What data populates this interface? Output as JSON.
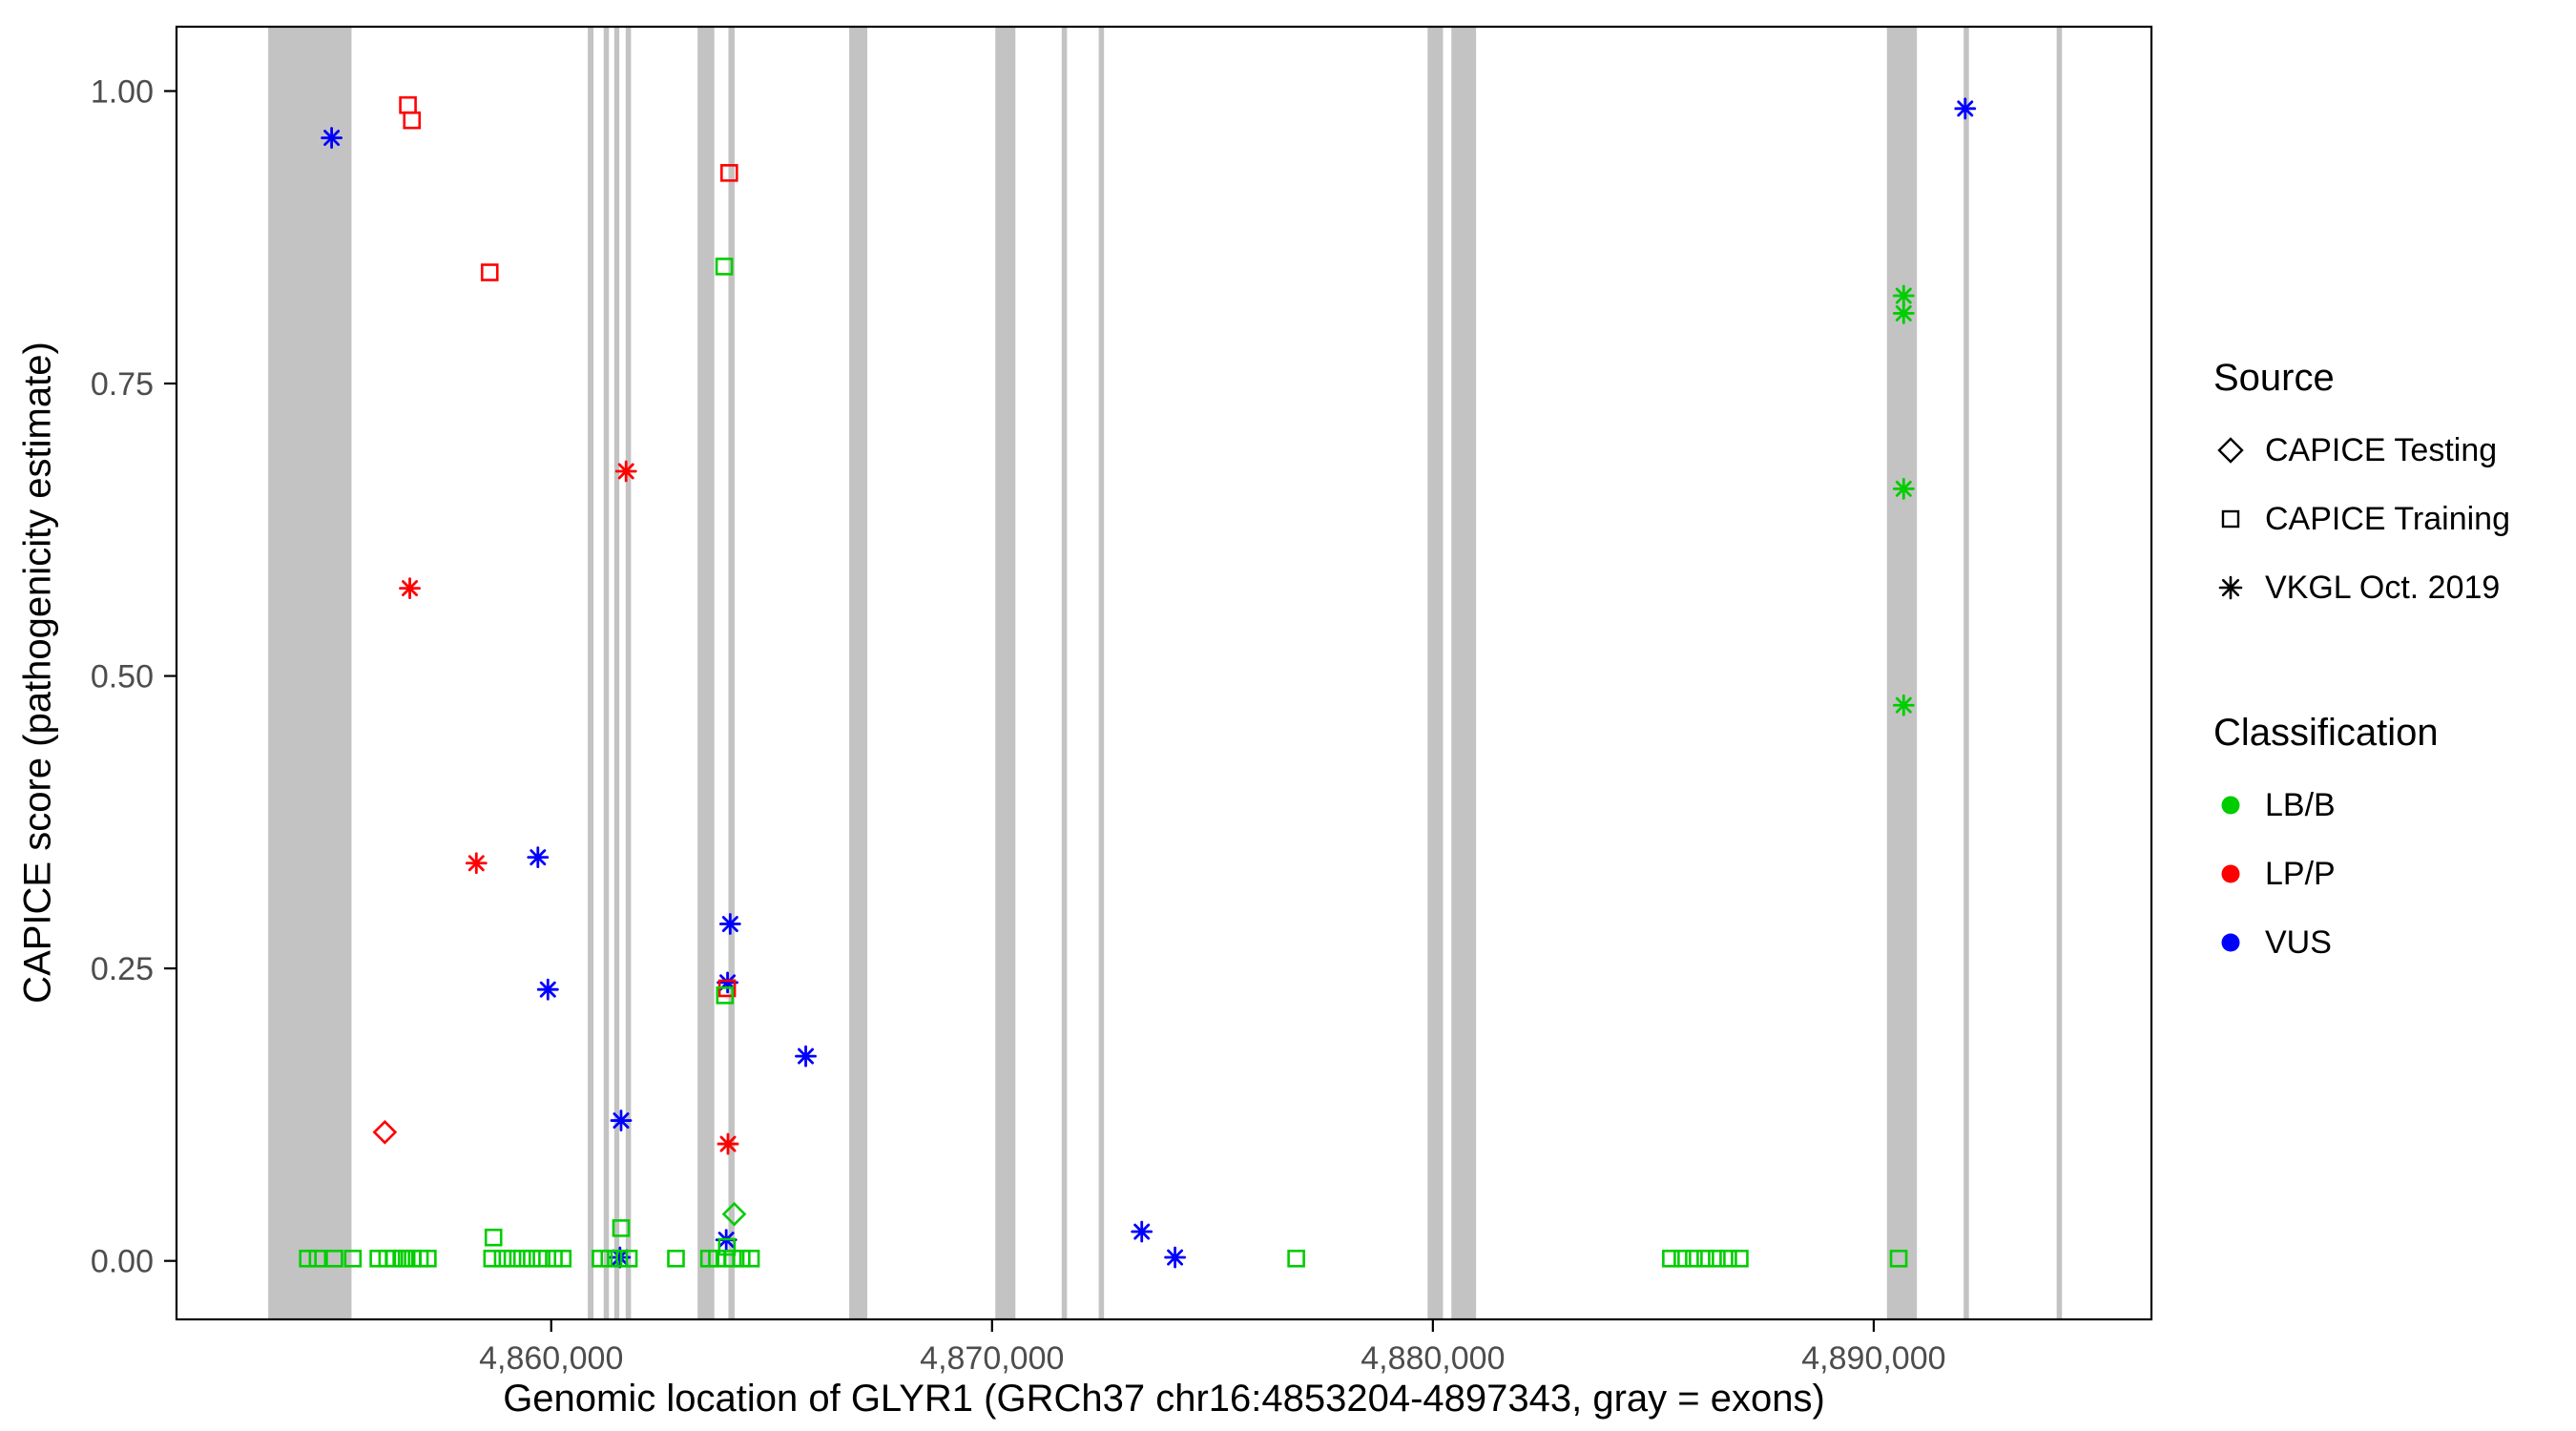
{
  "figure": {
    "x_axis_title": "Genomic location of GLYR1 (GRCh37 chr16:4853204-4897343, gray = exons)",
    "y_axis_title": "CAPICE score (pathogenicity estimate)"
  },
  "legend": {
    "source": {
      "title": "Source",
      "items": [
        {
          "label": "CAPICE Testing",
          "marker": "diamond"
        },
        {
          "label": "CAPICE Training",
          "marker": "square"
        },
        {
          "label": "VKGL Oct. 2019",
          "marker": "asterisk"
        }
      ]
    },
    "classification": {
      "title": "Classification",
      "items": [
        {
          "label": "LB/B",
          "color": "#00cd00"
        },
        {
          "label": "LP/P",
          "color": "#ff0000"
        },
        {
          "label": "VUS",
          "color": "#0000ff"
        }
      ]
    }
  },
  "chart_data": {
    "type": "scatter",
    "title": "",
    "xlabel": "Genomic location of GLYR1 (GRCh37 chr16:4853204-4897343, gray = exons)",
    "ylabel": "CAPICE score (pathogenicity estimate)",
    "x_domain": [
      4851500,
      4896300
    ],
    "y_domain": [
      -0.05,
      1.055
    ],
    "grid": false,
    "legend_position": "right",
    "x_ticks": [
      {
        "value": 4860000,
        "label": "4,860,000"
      },
      {
        "value": 4870000,
        "label": "4,870,000"
      },
      {
        "value": 4880000,
        "label": "4,880,000"
      },
      {
        "value": 4890000,
        "label": "4,890,000"
      }
    ],
    "y_ticks": [
      {
        "value": 0.0,
        "label": "0.00"
      },
      {
        "value": 0.25,
        "label": "0.25"
      },
      {
        "value": 0.5,
        "label": "0.50"
      },
      {
        "value": 0.75,
        "label": "0.75"
      },
      {
        "value": 1.0,
        "label": "1.00"
      }
    ],
    "colors": {
      "LB/B": "#00cd00",
      "LP/P": "#ff0000",
      "VUS": "#0000ff"
    },
    "marker_by_source": {
      "CAPICE Testing": "diamond",
      "CAPICE Training": "square",
      "VKGL Oct. 2019": "asterisk"
    },
    "exon_color": "#c3c3c3",
    "exons": [
      [
        4853580,
        4855470
      ],
      [
        4860830,
        4860960
      ],
      [
        4861190,
        4861310
      ],
      [
        4861430,
        4861545
      ],
      [
        4861690,
        4861810
      ],
      [
        4863320,
        4863700
      ],
      [
        4864020,
        4864160
      ],
      [
        4866760,
        4867170
      ],
      [
        4870075,
        4870530
      ],
      [
        4871580,
        4871700
      ],
      [
        4872420,
        4872540
      ],
      [
        4879880,
        4880230
      ],
      [
        4880420,
        4880980
      ],
      [
        4890300,
        4890980
      ],
      [
        4892040,
        4892160
      ],
      [
        4894150,
        4894270
      ]
    ],
    "points_format": [
      "genomic_position",
      "capice_score",
      "source",
      "classification"
    ],
    "points": [
      [
        4855019,
        0.96,
        "VKGL Oct. 2019",
        "VUS"
      ],
      [
        4856792,
        0.575,
        "VKGL Oct. 2019",
        "LP/P"
      ],
      [
        4858302,
        0.34,
        "VKGL Oct. 2019",
        "LP/P"
      ],
      [
        4859698,
        0.345,
        "VKGL Oct. 2019",
        "VUS"
      ],
      [
        4859925,
        0.232,
        "VKGL Oct. 2019",
        "VUS"
      ],
      [
        4861698,
        0.675,
        "VKGL Oct. 2019",
        "LP/P"
      ],
      [
        4861585,
        0.12,
        "VKGL Oct. 2019",
        "VUS"
      ],
      [
        4861560,
        0.003,
        "VKGL Oct. 2019",
        "VUS"
      ],
      [
        4864060,
        0.288,
        "VKGL Oct. 2019",
        "VUS"
      ],
      [
        4864000,
        0.238,
        "VKGL Oct. 2019",
        "VUS"
      ],
      [
        4864010,
        0.1,
        "VKGL Oct. 2019",
        "LP/P"
      ],
      [
        4863970,
        0.018,
        "VKGL Oct. 2019",
        "VUS"
      ],
      [
        4865774,
        0.175,
        "VKGL Oct. 2019",
        "VUS"
      ],
      [
        4873396,
        0.025,
        "VKGL Oct. 2019",
        "VUS"
      ],
      [
        4874151,
        0.003,
        "VKGL Oct. 2019",
        "VUS"
      ],
      [
        4890680,
        0.825,
        "VKGL Oct. 2019",
        "LB/B"
      ],
      [
        4890680,
        0.81,
        "VKGL Oct. 2019",
        "LB/B"
      ],
      [
        4890680,
        0.66,
        "VKGL Oct. 2019",
        "LB/B"
      ],
      [
        4890680,
        0.475,
        "VKGL Oct. 2019",
        "LB/B"
      ],
      [
        4892075,
        0.985,
        "VKGL Oct. 2019",
        "VUS"
      ],
      [
        4856226,
        0.11,
        "CAPICE Testing",
        "LP/P"
      ],
      [
        4864151,
        0.04,
        "CAPICE Testing",
        "LB/B"
      ],
      [
        4856750,
        0.988,
        "CAPICE Training",
        "LP/P"
      ],
      [
        4856840,
        0.975,
        "CAPICE Training",
        "LP/P"
      ],
      [
        4858604,
        0.845,
        "CAPICE Training",
        "LP/P"
      ],
      [
        4864038,
        0.93,
        "CAPICE Training",
        "LP/P"
      ],
      [
        4863990,
        0.233,
        "CAPICE Training",
        "LP/P"
      ],
      [
        4863925,
        0.85,
        "CAPICE Training",
        "LB/B"
      ],
      [
        4863940,
        0.227,
        "CAPICE Training",
        "LB/B"
      ],
      [
        4861585,
        0.028,
        "CAPICE Training",
        "LB/B"
      ],
      [
        4858690,
        0.02,
        "CAPICE Training",
        "LB/B"
      ],
      [
        4863985,
        0.012,
        "CAPICE Training",
        "LB/B"
      ],
      [
        4854480,
        0.002,
        "CAPICE Training",
        "LB/B"
      ],
      [
        4854700,
        0.002,
        "CAPICE Training",
        "LB/B"
      ],
      [
        4855080,
        0.002,
        "CAPICE Training",
        "LB/B"
      ],
      [
        4855500,
        0.002,
        "CAPICE Training",
        "LB/B"
      ],
      [
        4856080,
        0.002,
        "CAPICE Training",
        "LB/B"
      ],
      [
        4856280,
        0.002,
        "CAPICE Training",
        "LB/B"
      ],
      [
        4856440,
        0.002,
        "CAPICE Training",
        "LB/B"
      ],
      [
        4856600,
        0.002,
        "CAPICE Training",
        "LB/B"
      ],
      [
        4856720,
        0.002,
        "CAPICE Training",
        "LB/B"
      ],
      [
        4856860,
        0.002,
        "CAPICE Training",
        "LB/B"
      ],
      [
        4857020,
        0.002,
        "CAPICE Training",
        "LB/B"
      ],
      [
        4857200,
        0.002,
        "CAPICE Training",
        "LB/B"
      ],
      [
        4858660,
        0.002,
        "CAPICE Training",
        "LB/B"
      ],
      [
        4858900,
        0.002,
        "CAPICE Training",
        "LB/B"
      ],
      [
        4859120,
        0.002,
        "CAPICE Training",
        "LB/B"
      ],
      [
        4859340,
        0.002,
        "CAPICE Training",
        "LB/B"
      ],
      [
        4859560,
        0.002,
        "CAPICE Training",
        "LB/B"
      ],
      [
        4859780,
        0.002,
        "CAPICE Training",
        "LB/B"
      ],
      [
        4860060,
        0.002,
        "CAPICE Training",
        "LB/B"
      ],
      [
        4860260,
        0.002,
        "CAPICE Training",
        "LB/B"
      ],
      [
        4861120,
        0.002,
        "CAPICE Training",
        "LB/B"
      ],
      [
        4861320,
        0.002,
        "CAPICE Training",
        "LB/B"
      ],
      [
        4861540,
        0.002,
        "CAPICE Training",
        "LB/B"
      ],
      [
        4861760,
        0.002,
        "CAPICE Training",
        "LB/B"
      ],
      [
        4862830,
        0.002,
        "CAPICE Training",
        "LB/B"
      ],
      [
        4863580,
        0.002,
        "CAPICE Training",
        "LB/B"
      ],
      [
        4863760,
        0.002,
        "CAPICE Training",
        "LB/B"
      ],
      [
        4863960,
        0.002,
        "CAPICE Training",
        "LB/B"
      ],
      [
        4864120,
        0.002,
        "CAPICE Training",
        "LB/B"
      ],
      [
        4864320,
        0.002,
        "CAPICE Training",
        "LB/B"
      ],
      [
        4864530,
        0.002,
        "CAPICE Training",
        "LB/B"
      ],
      [
        4876900,
        0.002,
        "CAPICE Training",
        "LB/B"
      ],
      [
        4885400,
        0.002,
        "CAPICE Training",
        "LB/B"
      ],
      [
        4885660,
        0.002,
        "CAPICE Training",
        "LB/B"
      ],
      [
        4885920,
        0.002,
        "CAPICE Training",
        "LB/B"
      ],
      [
        4886180,
        0.002,
        "CAPICE Training",
        "LB/B"
      ],
      [
        4886440,
        0.002,
        "CAPICE Training",
        "LB/B"
      ],
      [
        4886700,
        0.002,
        "CAPICE Training",
        "LB/B"
      ],
      [
        4886960,
        0.002,
        "CAPICE Training",
        "LB/B"
      ],
      [
        4890566,
        0.002,
        "CAPICE Training",
        "LB/B"
      ]
    ]
  }
}
